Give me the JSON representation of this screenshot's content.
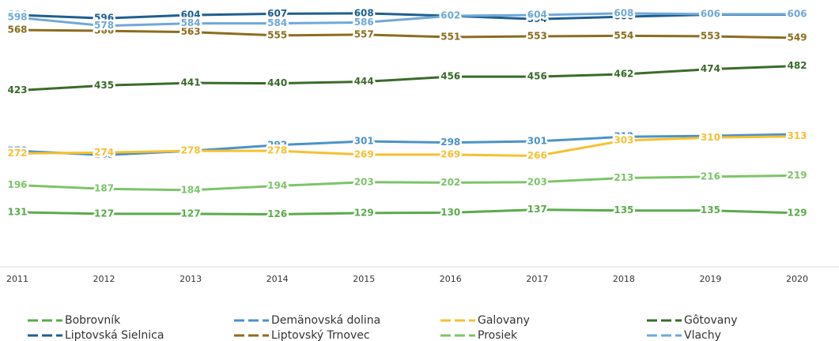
{
  "chart_data": {
    "type": "line",
    "categories": [
      "2011",
      "2012",
      "2013",
      "2014",
      "2015",
      "2016",
      "2017",
      "2018",
      "2019",
      "2020"
    ],
    "ylim": [
      0,
      640
    ],
    "series": [
      {
        "name": "Bobrovník",
        "color": "#5aab4a",
        "values": [
          131,
          127,
          127,
          126,
          129,
          130,
          137,
          135,
          135,
          129
        ]
      },
      {
        "name": "Demänovská dolina",
        "color": "#4a93c9",
        "values": [
          278,
          268,
          278,
          292,
          301,
          298,
          301,
          312,
          314,
          318
        ]
      },
      {
        "name": "Galovany",
        "color": "#f7c031",
        "values": [
          272,
          274,
          278,
          278,
          269,
          269,
          266,
          303,
          310,
          313
        ]
      },
      {
        "name": "Gôtovany",
        "color": "#3a6b2b",
        "values": [
          423,
          435,
          441,
          440,
          444,
          456,
          456,
          462,
          474,
          482
        ]
      },
      {
        "name": "Liptovská Sielnica",
        "color": "#1f5f8f",
        "values": [
          604,
          596,
          604,
          607,
          608,
          602,
          594,
          600,
          605,
          605
        ]
      },
      {
        "name": "Liptovský Trnovec",
        "color": "#8c6d1f",
        "values": [
          568,
          566,
          563,
          555,
          557,
          551,
          553,
          554,
          553,
          549
        ]
      },
      {
        "name": "Prosiek",
        "color": "#7cc46a",
        "values": [
          196,
          187,
          184,
          194,
          203,
          202,
          203,
          213,
          216,
          219
        ]
      },
      {
        "name": "Vlachy",
        "color": "#6fa8d8",
        "values": [
          598,
          578,
          584,
          584,
          586,
          602,
          604,
          608,
          606,
          606
        ]
      }
    ]
  }
}
